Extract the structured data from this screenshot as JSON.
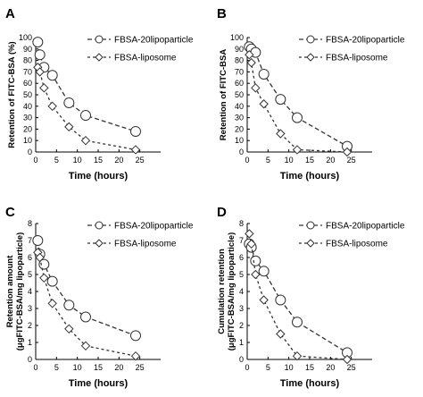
{
  "chart_data": [
    {
      "panel": "A",
      "type": "line",
      "xlabel": "Time (hours)",
      "ylabel": "Retention of FITC-BSA (%)",
      "xlim": [
        0,
        30
      ],
      "ylim": [
        0,
        100
      ],
      "x_ticks": [
        "0",
        "5",
        "10",
        "15",
        "20",
        "25"
      ],
      "y_ticks": [
        "0",
        "10",
        "20",
        "30",
        "40",
        "50",
        "60",
        "70",
        "80",
        "90",
        "100"
      ],
      "series": [
        {
          "name": "FBSA-20lipoparticle",
          "marker": "circle",
          "x": [
            0.5,
            1,
            2,
            4,
            8,
            12,
            24
          ],
          "y": [
            96,
            85,
            74,
            67,
            43,
            32,
            18
          ]
        },
        {
          "name": "FBSA-liposome",
          "marker": "diamond",
          "x": [
            0.5,
            1,
            2,
            4,
            8,
            12,
            24
          ],
          "y": [
            74,
            70,
            56,
            40,
            22,
            10,
            2
          ]
        }
      ]
    },
    {
      "panel": "B",
      "type": "line",
      "xlabel": "Time (hours)",
      "ylabel": "Retention of FITC-BSA",
      "xlim": [
        0,
        30
      ],
      "ylim": [
        0,
        100
      ],
      "x_ticks": [
        "0",
        "5",
        "10",
        "15",
        "20",
        "25"
      ],
      "y_ticks": [
        "0",
        "10",
        "20",
        "30",
        "40",
        "50",
        "60",
        "70",
        "80",
        "90",
        "100"
      ],
      "series": [
        {
          "name": "FBSA-20lipoparticle",
          "marker": "circle",
          "x": [
            0.5,
            1,
            2,
            4,
            8,
            12,
            24
          ],
          "y": [
            92,
            90,
            87,
            68,
            46,
            30,
            5
          ]
        },
        {
          "name": "FBSA-liposome",
          "marker": "diamond",
          "x": [
            0.5,
            1,
            2,
            4,
            8,
            12,
            24
          ],
          "y": [
            85,
            78,
            56,
            42,
            16,
            2,
            0
          ]
        }
      ]
    },
    {
      "panel": "C",
      "type": "line",
      "xlabel": "Time (hours)",
      "ylabel": "Retention amount (μgFITC-BSA/mg lipoparticle)",
      "xlim": [
        0,
        30
      ],
      "ylim": [
        0,
        8
      ],
      "x_ticks": [
        "0",
        "5",
        "10",
        "15",
        "20",
        "25"
      ],
      "y_ticks": [
        "0",
        "1",
        "2",
        "3",
        "4",
        "5",
        "6",
        "7",
        "8"
      ],
      "series": [
        {
          "name": "FBSA-20lipoparticle",
          "marker": "circle",
          "x": [
            0.5,
            1,
            2,
            4,
            8,
            12,
            24
          ],
          "y": [
            7.0,
            6.2,
            5.6,
            4.6,
            3.2,
            2.5,
            1.4
          ]
        },
        {
          "name": "FBSA-liposome",
          "marker": "diamond",
          "x": [
            0.5,
            1,
            2,
            4,
            8,
            12,
            24
          ],
          "y": [
            6.3,
            6.0,
            4.8,
            3.3,
            1.8,
            0.8,
            0.2
          ]
        }
      ]
    },
    {
      "panel": "D",
      "type": "line",
      "xlabel": "Time (hours)",
      "ylabel": "Cumulation retention (μgFITC-BSA/mg lipoparticle)",
      "xlim": [
        0,
        30
      ],
      "ylim": [
        0,
        8
      ],
      "x_ticks": [
        "0",
        "5",
        "10",
        "15",
        "20",
        "25"
      ],
      "y_ticks": [
        "0",
        "1",
        "2",
        "3",
        "4",
        "5",
        "6",
        "7",
        "8"
      ],
      "series": [
        {
          "name": "FBSA-20lipoparticle",
          "marker": "circle",
          "x": [
            0.5,
            1,
            2,
            4,
            8,
            12,
            24
          ],
          "y": [
            6.8,
            6.6,
            5.8,
            5.2,
            3.5,
            2.2,
            0.4
          ]
        },
        {
          "name": "FBSA-liposome",
          "marker": "diamond",
          "x": [
            0.5,
            1,
            2,
            4,
            8,
            12,
            24
          ],
          "y": [
            7.4,
            6.8,
            5.0,
            3.5,
            1.5,
            0.2,
            0
          ]
        }
      ]
    }
  ],
  "colors": {
    "axis": "#000000",
    "line": "#333333",
    "marker_fill": "#ffffff"
  }
}
